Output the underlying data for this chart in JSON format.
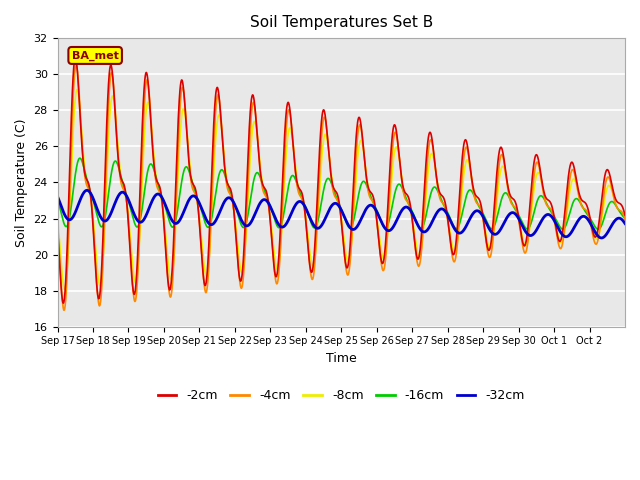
{
  "title": "Soil Temperatures Set B",
  "xlabel": "Time",
  "ylabel": "Soil Temperature (C)",
  "ylim": [
    16,
    32
  ],
  "background_color": "#e8e8e8",
  "grid_color": "#ffffff",
  "annotation_text": "BA_met",
  "annotation_facecolor": "#ffff00",
  "annotation_edgecolor": "#8B0000",
  "annotation_textcolor": "#8B0000",
  "series_colors": {
    "-2cm": "#dd0000",
    "-4cm": "#ff8800",
    "-8cm": "#eeee00",
    "-16cm": "#00cc00",
    "-32cm": "#0000cc"
  },
  "series_linewidths": {
    "-2cm": 1.2,
    "-4cm": 1.2,
    "-8cm": 1.2,
    "-16cm": 1.2,
    "-32cm": 2.0
  },
  "xtick_labels": [
    "Sep 17",
    "Sep 18",
    "Sep 19",
    "Sep 20",
    "Sep 21",
    "Sep 22",
    "Sep 23",
    "Sep 24",
    "Sep 25",
    "Sep 26",
    "Sep 27",
    "Sep 28",
    "Sep 29",
    "Sep 30",
    "Oct 1",
    "Oct 2"
  ],
  "ytick_labels": [
    16,
    18,
    20,
    22,
    24,
    26,
    28,
    30,
    32
  ],
  "n_days": 16,
  "pts_per_day": 144
}
